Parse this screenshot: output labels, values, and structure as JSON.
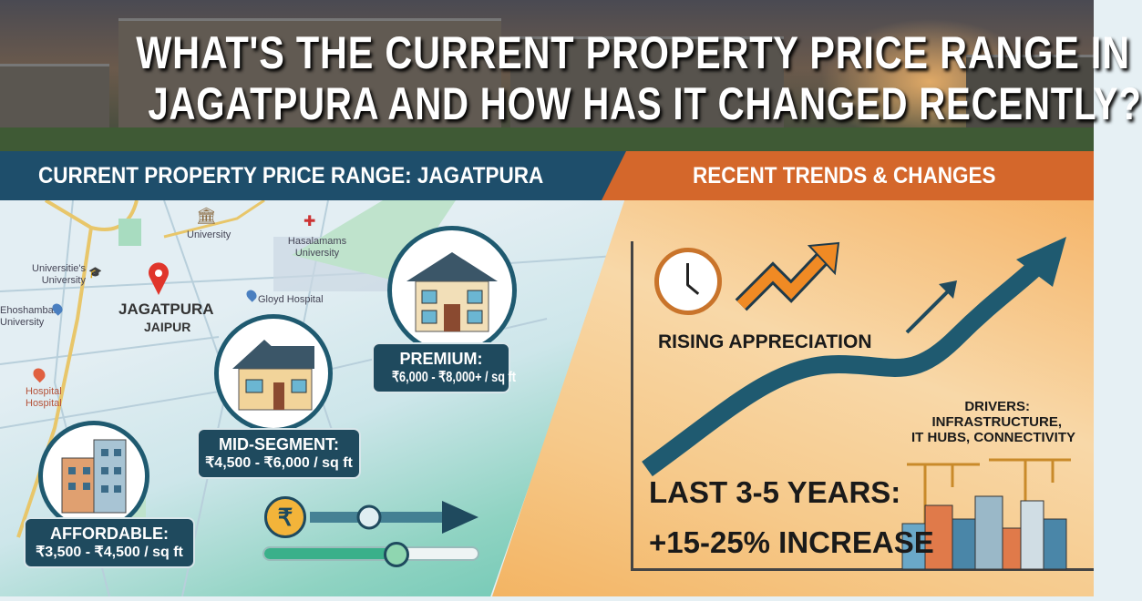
{
  "title": {
    "line1": "WHAT'S THE CURRENT PROPERTY PRICE RANGE IN",
    "line2": "JAGATPURA AND HOW HAS IT CHANGED RECENTLY?"
  },
  "left_header": "CURRENT PROPERTY PRICE RANGE: JAGATPURA",
  "right_header": "RECENT TRENDS & CHANGES",
  "map": {
    "location": "JAGATPURA",
    "city": "JAIPUR",
    "labels": [
      "University",
      "Hasalamams University",
      "Universitie's University",
      "Ehoshambar University",
      "Gloyd Hospital",
      "Hospital Hospital"
    ]
  },
  "segments": [
    {
      "name": "PREMIUM:",
      "price": "₹6,000 - ₹8,000+ / sq ft"
    },
    {
      "name": "MID-SEGMENT:",
      "price": "₹4,500 - ₹6,000 / sq ft"
    },
    {
      "name": "AFFORDABLE:",
      "price": "₹3,500 - ₹4,500 / sq ft"
    }
  ],
  "rupee_symbol": "₹",
  "trends": {
    "rising": "RISING APPRECIATION",
    "drivers": {
      "line1": "DRIVERS:",
      "line2": "INFRASTRUCTURE,",
      "line3": "IT HUBS, CONNECTIVITY"
    },
    "period": "LAST 3-5 YEARS:",
    "increase": "+15-25% INCREASE"
  },
  "colors": {
    "navy": "#1e4e6b",
    "orange": "#d4672b",
    "teal": "#1f5a70"
  }
}
